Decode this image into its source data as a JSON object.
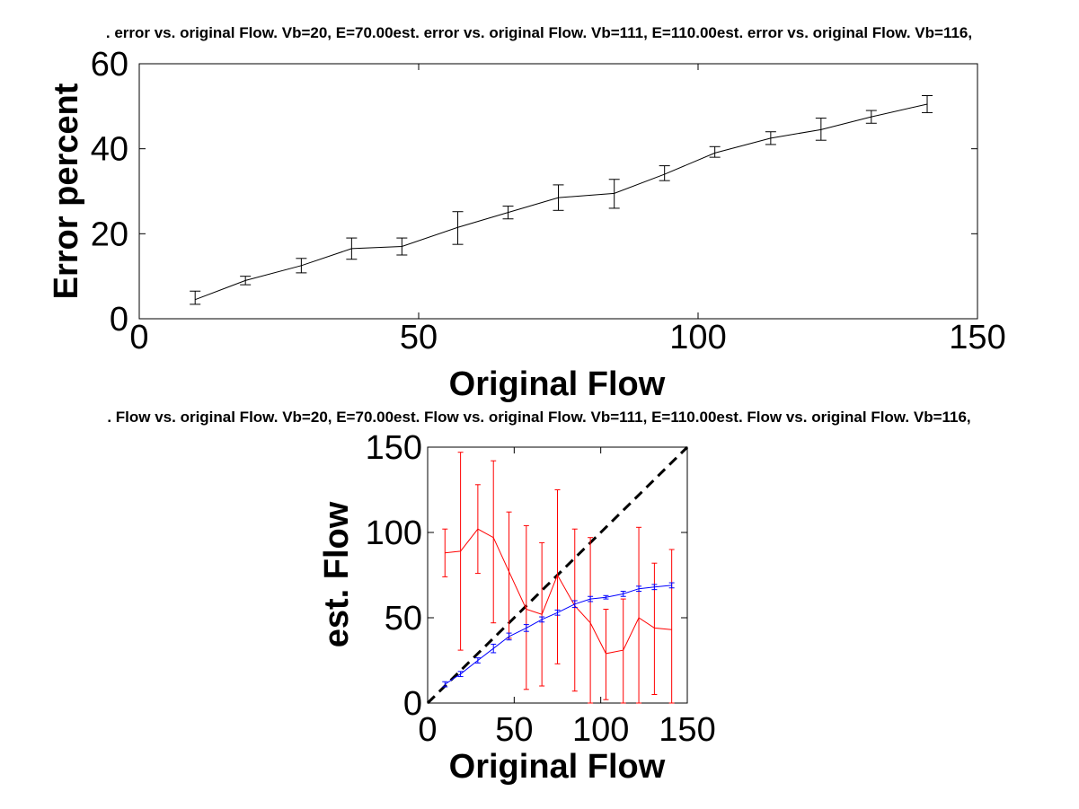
{
  "chart_data": [
    {
      "type": "line",
      "title": ". error vs. original Flow. Vb=20, E=70.00est. error vs. original Flow. Vb=111, E=110.00est. error vs. original Flow. Vb=116,",
      "xlabel": "Original Flow",
      "ylabel": "Error percent",
      "xlim": [
        0,
        150
      ],
      "ylim": [
        0,
        60
      ],
      "xticks": [
        "0",
        "50",
        "100",
        "150"
      ],
      "yticks": [
        "0",
        "20",
        "40",
        "60"
      ],
      "grid": false,
      "colors": {
        "line": "#000000"
      },
      "series": [
        {
          "x": [
            10,
            19,
            29,
            38,
            47,
            57,
            66,
            75,
            85,
            94,
            103,
            113,
            122,
            131,
            141
          ],
          "values": [
            4.5,
            9,
            12.5,
            16.5,
            17,
            21.5,
            25,
            28.5,
            29.5,
            34,
            39,
            42.5,
            44.5,
            47.5,
            50.5
          ],
          "err_low": [
            3.4,
            8.0,
            10.8,
            14.0,
            15.0,
            17.5,
            23.5,
            25.5,
            26.0,
            32.5,
            38.0,
            41.0,
            42.0,
            46.0,
            48.5
          ],
          "err_high": [
            6.5,
            10.0,
            14.2,
            19.0,
            19.0,
            25.2,
            26.5,
            31.5,
            32.8,
            36.0,
            40.5,
            44.0,
            47.2,
            49.0,
            52.5
          ]
        }
      ]
    },
    {
      "type": "line",
      "title": ". Flow vs. original Flow. Vb=20, E=70.00est. Flow vs. original Flow. Vb=111, E=110.00est. Flow vs. original Flow. Vb=116,",
      "xlabel": "Original Flow",
      "ylabel": "est. Flow",
      "xlim": [
        0,
        150
      ],
      "ylim": [
        0,
        150
      ],
      "xticks": [
        "0",
        "50",
        "100",
        "150"
      ],
      "yticks": [
        "0",
        "50",
        "100",
        "150"
      ],
      "grid": false,
      "colors": {
        "red": "#ff0000",
        "blue": "#0000ff",
        "identity": "#000000"
      },
      "identity_line": {
        "x": [
          0,
          150
        ],
        "values": [
          0,
          150
        ],
        "style": "dashed"
      },
      "series": [
        {
          "color": "#ff0000",
          "x": [
            10,
            19,
            29,
            38,
            47,
            57,
            66,
            75,
            85,
            94,
            103,
            113,
            122,
            131,
            141
          ],
          "values": [
            88,
            89,
            102,
            97,
            77,
            55,
            52,
            75,
            57,
            47,
            29,
            31,
            50,
            44,
            43
          ],
          "err_low": [
            74,
            31,
            76,
            47,
            38,
            8,
            10,
            23,
            7,
            0,
            2,
            0,
            0,
            5,
            0
          ],
          "err_high": [
            102,
            147,
            128,
            142,
            112,
            104,
            94,
            125,
            102,
            97,
            55,
            61,
            103,
            82,
            90
          ]
        },
        {
          "color": "#0000ff",
          "x": [
            10,
            19,
            29,
            38,
            47,
            57,
            66,
            75,
            85,
            94,
            103,
            113,
            122,
            131,
            141
          ],
          "values": [
            11,
            17,
            25,
            32,
            39,
            44,
            49,
            53,
            58,
            61,
            62,
            64,
            67,
            68,
            69
          ],
          "err_low": [
            9.5,
            15.5,
            23.5,
            29.5,
            37,
            42,
            47.5,
            51.5,
            56,
            59.5,
            61,
            62.5,
            65.5,
            66.5,
            67.5
          ],
          "err_high": [
            12.5,
            18.5,
            26.5,
            34.5,
            41,
            46,
            50.5,
            54.5,
            60,
            62.5,
            63,
            65.5,
            68.5,
            69.5,
            70.5
          ]
        }
      ]
    }
  ]
}
